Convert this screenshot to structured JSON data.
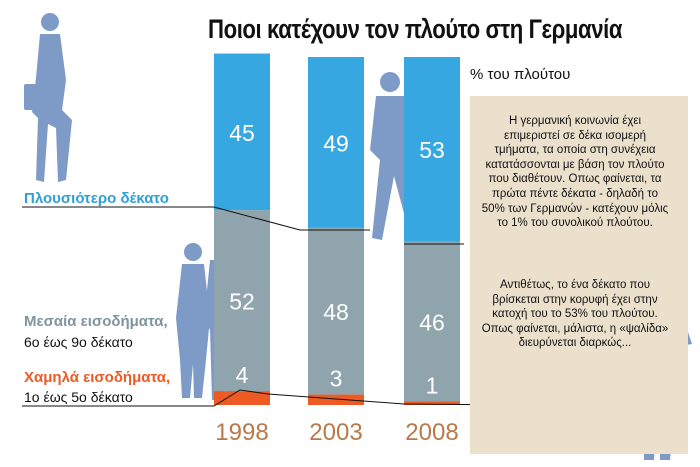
{
  "title": "Ποιοι κατέχουν τον πλούτο στη Γερμανία",
  "unit_label": "% του πλούτου",
  "legend": {
    "top": "Πλουσιότερο δέκατο",
    "middle_title": "Μεσαία εισοδήματα,",
    "middle_range": "6ο έως 9ο δέκατο",
    "low_title": "Χαμηλά εισοδήματα,",
    "low_range": "1ο έως 5ο δέκατο"
  },
  "note": {
    "paragraph1": "Η γερμανική κοινωνία έχει επιμεριστεί σε δέκα ισομερή τμήματα, τα οποία στη συνέχεια κατατάσσονται με βάση τον πλούτο που διαθέτουν. Οπως φαίνεται, τα πρώτα πέντε δέκατα - δηλαδή το 50% των Γερμανών - κατέχουν μόλις το 1% του συνολικού πλούτου.",
    "paragraph2": "Αντιθέτως, το ένα δέκατο που βρίσκεται στην κορυφή έχει στην κατοχή του το 53% του πλούτου. Οπως φαίνεται, μάλιστα, η «ψαλίδα» διευρύνεται διαρκώς..."
  },
  "colors": {
    "top": "#36a7e0",
    "middle": "#8fa4ad",
    "low": "#ee5a24",
    "year": "#b9794a",
    "note_bg": "#ebe0cc",
    "figure": "#5a7fb8"
  },
  "chart_data": {
    "type": "bar",
    "stacked": true,
    "categories": [
      "1998",
      "2003",
      "2008"
    ],
    "series": [
      {
        "name": "Χαμηλά εισοδήματα, 1ο έως 5ο δέκατο",
        "values": [
          4,
          3,
          1
        ]
      },
      {
        "name": "Μεσαία εισοδήματα, 6ο έως 9ο δέκατο",
        "values": [
          52,
          48,
          46
        ]
      },
      {
        "name": "Πλουσιότερο δέκατο",
        "values": [
          45,
          49,
          53
        ]
      }
    ],
    "ylabel": "% του πλούτου",
    "ylim": [
      0,
      100
    ],
    "grid": false
  }
}
